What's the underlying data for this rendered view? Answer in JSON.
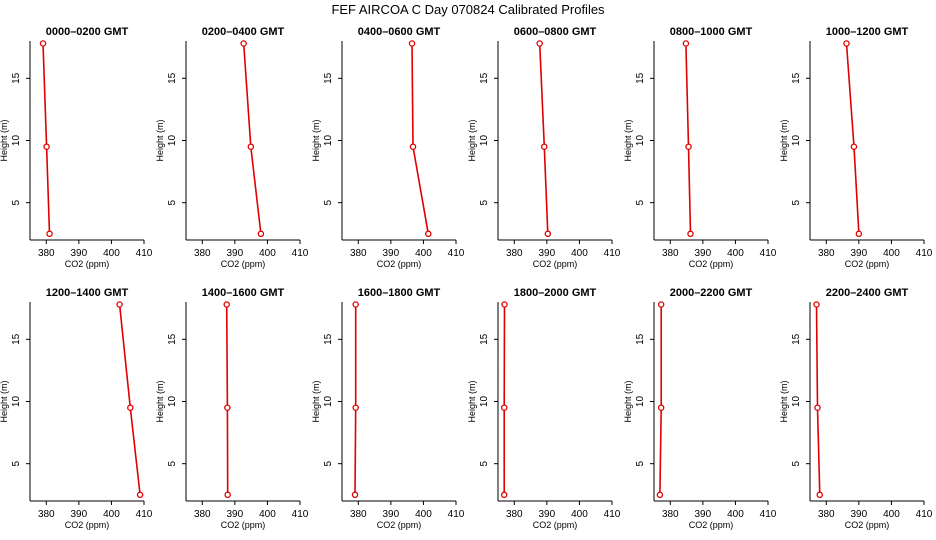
{
  "figure_title": "FEF AIRCOA C  Day 070824  Calibrated Profiles",
  "colors": {
    "line": "#e00000",
    "axis": "#000000",
    "background": "#ffffff"
  },
  "chart_data": [
    {
      "type": "line",
      "title": "0000–0200 GMT",
      "xlabel": "CO2 (ppm)",
      "ylabel": "Height (m)",
      "xlim": [
        375,
        410
      ],
      "ylim": [
        2,
        18
      ],
      "xticks": [
        380,
        390,
        400,
        410
      ],
      "yticks": [
        5,
        10,
        15
      ],
      "grid": false,
      "x": [
        379.0,
        380.1,
        381.0
      ],
      "y": [
        17.8,
        9.5,
        2.5
      ]
    },
    {
      "type": "line",
      "title": "0200–0400 GMT",
      "xlabel": "CO2 (ppm)",
      "ylabel": "Height (m)",
      "xlim": [
        375,
        410
      ],
      "ylim": [
        2,
        18
      ],
      "xticks": [
        380,
        390,
        400,
        410
      ],
      "yticks": [
        5,
        10,
        15
      ],
      "grid": false,
      "x": [
        392.7,
        394.9,
        398.0
      ],
      "y": [
        17.8,
        9.5,
        2.5
      ]
    },
    {
      "type": "line",
      "title": "0400–0600 GMT",
      "xlabel": "CO2 (ppm)",
      "ylabel": "Height (m)",
      "xlim": [
        375,
        410
      ],
      "ylim": [
        2,
        18
      ],
      "xticks": [
        380,
        390,
        400,
        410
      ],
      "yticks": [
        5,
        10,
        15
      ],
      "grid": false,
      "x": [
        396.5,
        396.8,
        401.5
      ],
      "y": [
        17.8,
        9.5,
        2.5
      ]
    },
    {
      "type": "line",
      "title": "0600–0800 GMT",
      "xlabel": "CO2 (ppm)",
      "ylabel": "Height (m)",
      "xlim": [
        375,
        410
      ],
      "ylim": [
        2,
        18
      ],
      "xticks": [
        380,
        390,
        400,
        410
      ],
      "yticks": [
        5,
        10,
        15
      ],
      "grid": false,
      "x": [
        387.8,
        389.2,
        390.3
      ],
      "y": [
        17.8,
        9.5,
        2.5
      ]
    },
    {
      "type": "line",
      "title": "0800–1000 GMT",
      "xlabel": "CO2 (ppm)",
      "ylabel": "Height (m)",
      "xlim": [
        375,
        410
      ],
      "ylim": [
        2,
        18
      ],
      "xticks": [
        380,
        390,
        400,
        410
      ],
      "yticks": [
        5,
        10,
        15
      ],
      "grid": false,
      "x": [
        384.8,
        385.6,
        386.2
      ],
      "y": [
        17.8,
        9.5,
        2.5
      ]
    },
    {
      "type": "line",
      "title": "1000–1200 GMT",
      "xlabel": "CO2 (ppm)",
      "ylabel": "Height (m)",
      "xlim": [
        375,
        410
      ],
      "ylim": [
        2,
        18
      ],
      "xticks": [
        380,
        390,
        400,
        410
      ],
      "yticks": [
        5,
        10,
        15
      ],
      "grid": false,
      "x": [
        386.2,
        388.5,
        390.0
      ],
      "y": [
        17.8,
        9.5,
        2.5
      ]
    },
    {
      "type": "line",
      "title": "1200–1400 GMT",
      "xlabel": "CO2 (ppm)",
      "ylabel": "Height (m)",
      "xlim": [
        375,
        410
      ],
      "ylim": [
        2,
        18
      ],
      "xticks": [
        380,
        390,
        400,
        410
      ],
      "yticks": [
        5,
        10,
        15
      ],
      "grid": false,
      "x": [
        402.5,
        405.8,
        408.8
      ],
      "y": [
        17.8,
        9.5,
        2.5
      ]
    },
    {
      "type": "line",
      "title": "1400–1600 GMT",
      "xlabel": "CO2 (ppm)",
      "ylabel": "Height (m)",
      "xlim": [
        375,
        410
      ],
      "ylim": [
        2,
        18
      ],
      "xticks": [
        380,
        390,
        400,
        410
      ],
      "yticks": [
        5,
        10,
        15
      ],
      "grid": false,
      "x": [
        387.5,
        387.7,
        387.8
      ],
      "y": [
        17.8,
        9.5,
        2.5
      ]
    },
    {
      "type": "line",
      "title": "1600–1800 GMT",
      "xlabel": "CO2 (ppm)",
      "ylabel": "Height (m)",
      "xlim": [
        375,
        410
      ],
      "ylim": [
        2,
        18
      ],
      "xticks": [
        380,
        390,
        400,
        410
      ],
      "yticks": [
        5,
        10,
        15
      ],
      "grid": false,
      "x": [
        379.2,
        379.2,
        379.0
      ],
      "y": [
        17.8,
        9.5,
        2.5
      ]
    },
    {
      "type": "line",
      "title": "1800–2000 GMT",
      "xlabel": "CO2 (ppm)",
      "ylabel": "Height (m)",
      "xlim": [
        375,
        410
      ],
      "ylim": [
        2,
        18
      ],
      "xticks": [
        380,
        390,
        400,
        410
      ],
      "yticks": [
        5,
        10,
        15
      ],
      "grid": false,
      "x": [
        377.0,
        376.9,
        376.9
      ],
      "y": [
        17.8,
        9.5,
        2.5
      ]
    },
    {
      "type": "line",
      "title": "2000–2200 GMT",
      "xlabel": "CO2 (ppm)",
      "ylabel": "Height (m)",
      "xlim": [
        375,
        410
      ],
      "ylim": [
        2,
        18
      ],
      "xticks": [
        380,
        390,
        400,
        410
      ],
      "yticks": [
        5,
        10,
        15
      ],
      "grid": false,
      "x": [
        377.2,
        377.2,
        376.8
      ],
      "y": [
        17.8,
        9.5,
        2.5
      ]
    },
    {
      "type": "line",
      "title": "2200–2400 GMT",
      "xlabel": "CO2 (ppm)",
      "ylabel": "Height (m)",
      "xlim": [
        375,
        410
      ],
      "ylim": [
        2,
        18
      ],
      "xticks": [
        380,
        390,
        400,
        410
      ],
      "yticks": [
        5,
        10,
        15
      ],
      "grid": false,
      "x": [
        377.0,
        377.3,
        378.0
      ],
      "y": [
        17.8,
        9.5,
        2.5
      ]
    }
  ]
}
